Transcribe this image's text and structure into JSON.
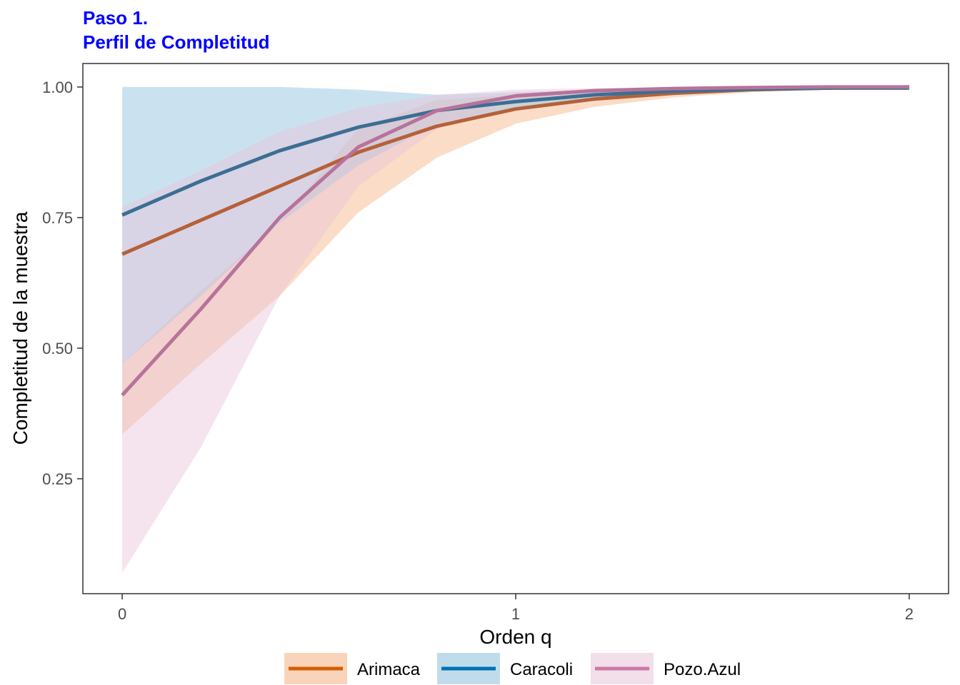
{
  "title_line1": "Paso 1.",
  "title_line2": "Perfil de Completitud",
  "chart_data": {
    "type": "line",
    "xlabel": "Orden q",
    "ylabel": "Completitud de la muestra",
    "xlim": [
      -0.1,
      2.1
    ],
    "ylim": [
      0.03,
      1.045
    ],
    "x_ticks": [
      0,
      1,
      2
    ],
    "y_ticks": [
      0.25,
      0.5,
      0.75,
      1.0
    ],
    "grid": false,
    "legend_position": "bottom",
    "x": [
      0,
      0.2,
      0.4,
      0.6,
      0.8,
      1.0,
      1.2,
      1.4,
      1.6,
      1.8,
      2.0
    ],
    "series": [
      {
        "name": "Arimaca",
        "color": "#d55e00",
        "line_color": "#b5613a",
        "fill": "#f4b183",
        "fill_opacity": 0.45,
        "values": [
          0.68,
          0.745,
          0.81,
          0.875,
          0.925,
          0.958,
          0.977,
          0.988,
          0.995,
          0.998,
          1.0
        ],
        "lower": [
          0.335,
          0.47,
          0.6,
          0.76,
          0.865,
          0.93,
          0.962,
          0.98,
          0.99,
          0.996,
          0.998
        ],
        "upper": [
          0.47,
          0.61,
          0.74,
          0.92,
          0.975,
          0.985,
          0.992,
          0.996,
          0.998,
          0.999,
          1.0
        ]
      },
      {
        "name": "Caracoli",
        "color": "#0072b2",
        "line_color": "#3c6e93",
        "fill": "#9ecae1",
        "fill_opacity": 0.55,
        "values": [
          0.755,
          0.82,
          0.878,
          0.923,
          0.955,
          0.972,
          0.985,
          0.992,
          0.996,
          0.998,
          0.998
        ],
        "lower": [
          0.47,
          0.6,
          0.74,
          0.85,
          0.93,
          0.96,
          0.978,
          0.988,
          0.994,
          0.997,
          0.998
        ],
        "upper": [
          1.0,
          1.0,
          1.0,
          0.995,
          0.985,
          0.99,
          0.995,
          0.998,
          0.999,
          1.0,
          1.0
        ]
      },
      {
        "name": "Pozo.Azul",
        "color": "#cc79a7",
        "line_color": "#b7739a",
        "fill": "#e8c4d9",
        "fill_opacity": 0.45,
        "values": [
          0.41,
          0.575,
          0.75,
          0.885,
          0.955,
          0.983,
          0.993,
          0.997,
          0.999,
          1.0,
          1.0
        ],
        "lower": [
          0.07,
          0.31,
          0.6,
          0.81,
          0.92,
          0.97,
          0.985,
          0.993,
          0.997,
          0.999,
          1.0
        ],
        "upper": [
          0.77,
          0.84,
          0.915,
          0.96,
          0.985,
          0.995,
          0.998,
          0.999,
          1.0,
          1.0,
          1.0
        ]
      }
    ]
  }
}
